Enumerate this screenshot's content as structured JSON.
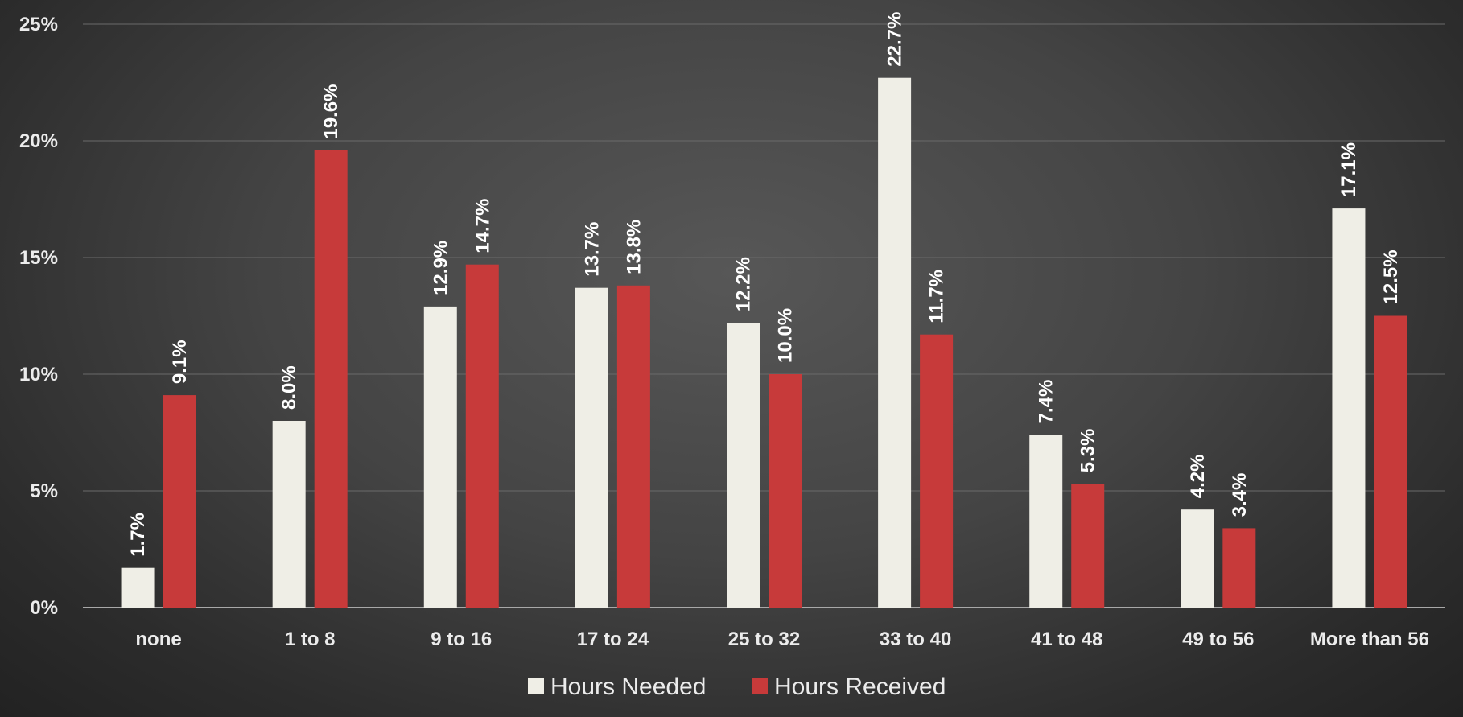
{
  "chart_data": {
    "type": "bar",
    "categories": [
      "none",
      "1 to 8",
      "9 to 16",
      "17  to 24",
      "25 to 32",
      "33 to 40",
      "41 to 48",
      "49 to 56",
      "More than 56"
    ],
    "series": [
      {
        "name": "Hours Needed",
        "color": "#efeee6",
        "values": [
          1.7,
          8.0,
          12.9,
          13.7,
          12.2,
          22.7,
          7.4,
          4.2,
          17.1
        ],
        "labels": [
          "1.7%",
          "8.0%",
          "12.9%",
          "13.7%",
          "12.2%",
          "22.7%",
          "7.4%",
          "4.2%",
          "17.1%"
        ]
      },
      {
        "name": "Hours Received",
        "color": "#c73a3a",
        "values": [
          9.1,
          19.6,
          14.7,
          13.8,
          10.0,
          11.7,
          5.3,
          3.4,
          12.5
        ],
        "labels": [
          "9.1%",
          "19.6%",
          "14.7%",
          "13.8%",
          "10.0%",
          "11.7%",
          "5.3%",
          "3.4%",
          "12.5%"
        ]
      }
    ],
    "ylim": [
      0,
      25
    ],
    "yticks": [
      0,
      5,
      10,
      15,
      20,
      25
    ],
    "ytick_labels": [
      "0%",
      "5%",
      "10%",
      "15%",
      "20%",
      "25%"
    ],
    "grid": true,
    "legend": "bottom-center",
    "title": "",
    "xlabel": "",
    "ylabel": ""
  }
}
